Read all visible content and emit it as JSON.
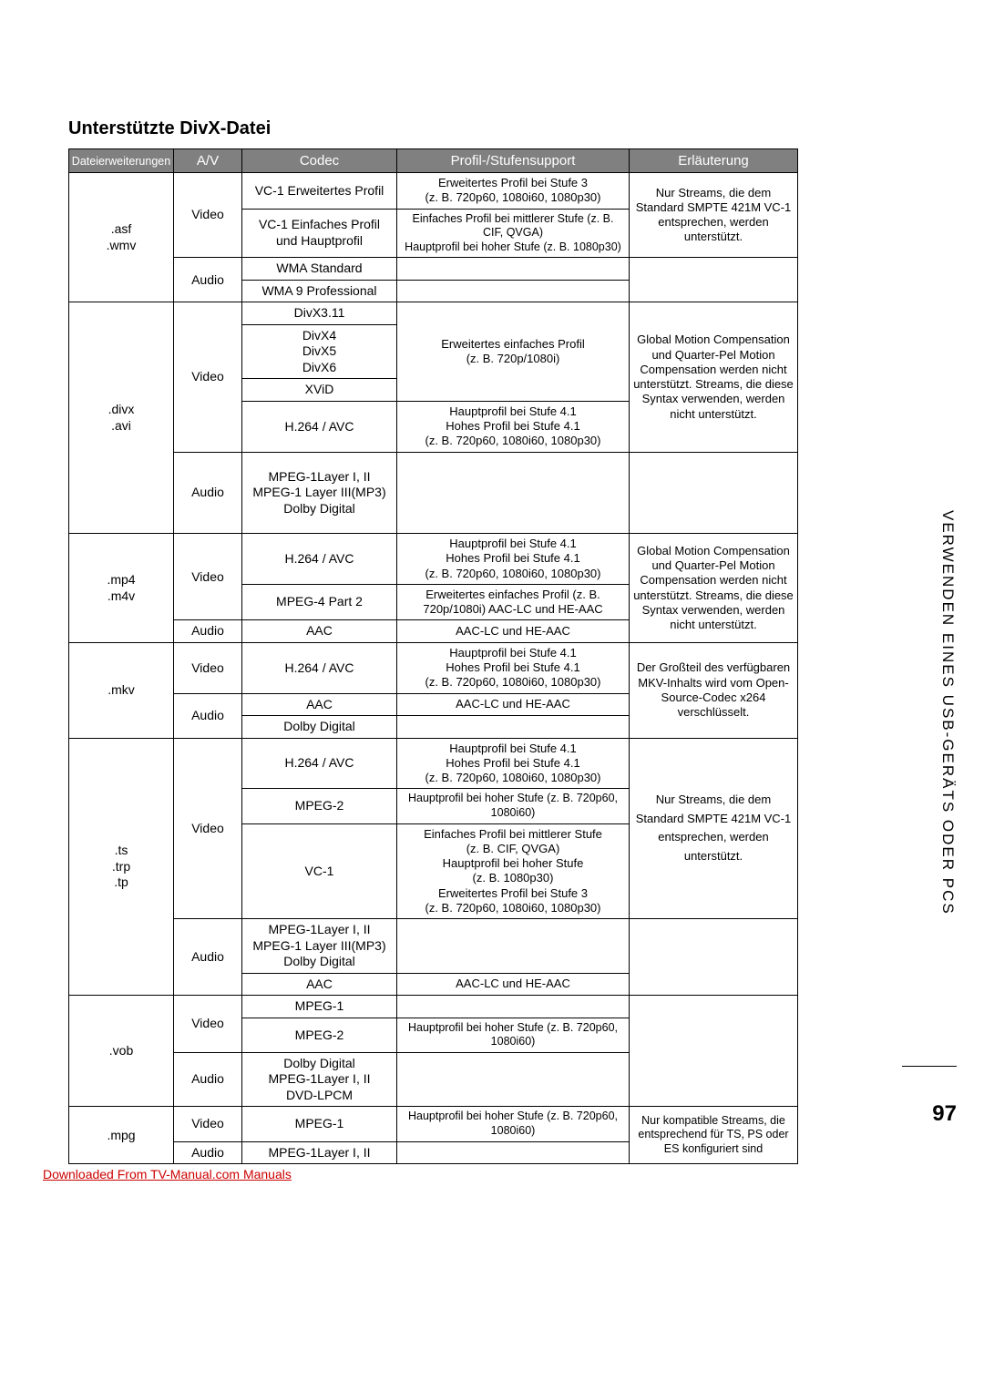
{
  "heading": "Unterstützte DivX-Datei",
  "headers": {
    "ext": "Dateierweiterungen",
    "av": "A/V",
    "codec": "Codec",
    "profile": "Profil-/Stufensupport",
    "desc": "Erläuterung"
  },
  "t": {
    "asf_ext": ".asf\n.wmv",
    "video": "Video",
    "audio": "Audio",
    "vc1_adv": "VC-1 Erweitertes Profil",
    "vc1_adv_p": "Erweitertes Profil bei Stufe 3\n(z. B. 720p60, 1080i60, 1080p30)",
    "vc1_simple": "VC-1 Einfaches Profil\nund Hauptprofil",
    "vc1_simple_p": "Einfaches Profil bei mittlerer Stufe (z. B. CIF, QVGA)\nHauptprofil bei hoher Stufe (z. B. 1080p30)",
    "asf_desc": "Nur Streams, die dem Standard SMPTE 421M VC-1 entsprechen, werden unterstützt.",
    "wma_std": "WMA Standard",
    "wma9": "WMA 9 Professional",
    "divx_ext": ".divx\n.avi",
    "divx311": "DivX3.11",
    "divx456": "DivX4\nDivX5\nDivX6",
    "xvid": "XViD",
    "divx_prof": "Erweitertes einfaches Profil\n(z. B. 720p/1080i)",
    "h264": "H.264 / AVC",
    "h264_prof": "Hauptprofil bei Stufe 4.1\nHohes Profil bei Stufe 4.1\n(z. B. 720p60, 1080i60, 1080p30)",
    "divx_desc": "Global Motion Compensation und Quarter-Pel Motion Compensation werden nicht unterstützt. Streams, die diese Syntax verwenden, werden nicht unterstützt.",
    "mpeg1_dd": "MPEG-1Layer I, II\nMPEG-1 Layer III(MP3)\nDolby Digital",
    "mp4_ext": ".mp4\n.m4v",
    "mpeg4p2": "MPEG-4 Part 2",
    "mpeg4p2_p": "Erweitertes einfaches Profil (z. B. 720p/1080i) AAC-LC und HE-AAC",
    "aac": "AAC",
    "aac_p": "AAC-LC und HE-AAC",
    "mp4_desc": "Global Motion Compensation und Quarter-Pel Motion Compensation werden nicht unterstützt. Streams, die diese Syntax verwenden, werden nicht unterstützt.",
    "mkv_ext": ".mkv",
    "dd": "Dolby Digital",
    "mkv_desc": "Der Großteil des verfügbaren MKV-Inhalts wird vom Open-Source-Codec x264 verschlüsselt.",
    "ts_ext": ".ts\n.trp\n.tp",
    "mpeg2": "MPEG-2",
    "mpeg2_p": "Hauptprofil bei hoher Stufe (z. B. 720p60, 1080i60)",
    "vc1": "VC-1",
    "vc1_p_big": "Einfaches Profil bei mittlerer Stufe\n(z. B. CIF, QVGA)\nHauptprofil bei hoher Stufe\n(z. B. 1080p30)\nErweitertes Profil bei Stufe 3\n(z. B. 720p60, 1080i60, 1080p30)",
    "ts_desc": "Nur Streams, die dem Standard SMPTE 421M VC-1 entsprechen, werden unterstützt.",
    "vob_ext": ".vob",
    "mpeg1": "MPEG-1",
    "vob_audio": "Dolby Digital\nMPEG-1Layer I, II\nDVD-LPCM",
    "mpg_ext": ".mpg",
    "mpg_audio": "MPEG-1Layer I, II",
    "mpg_desc": "Nur kompatible Streams, die entsprechend für TS, PS oder ES konfiguriert sind"
  },
  "sidetext": "VERWENDEN EINES USB-GERÄTS ODER PCS",
  "pagenum": "97",
  "footer": "Downloaded From TV-Manual.com Manuals",
  "colors": {
    "header_bg": "#808080",
    "header_fg": "#ffffff",
    "border": "#000000",
    "link": "#cc0000"
  }
}
